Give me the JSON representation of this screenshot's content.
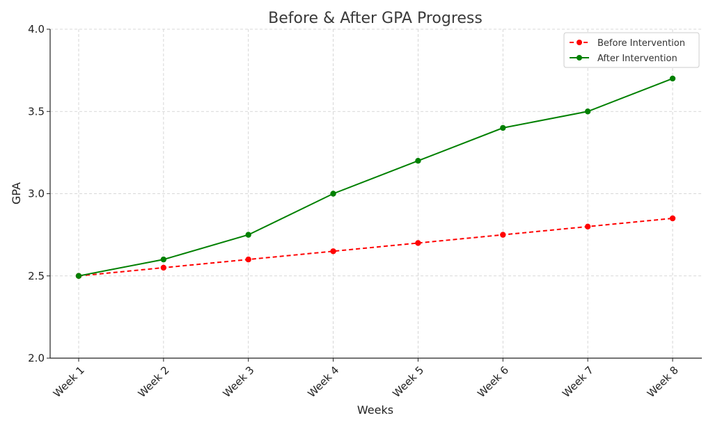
{
  "chart_data": {
    "type": "line",
    "title": "Before & After GPA Progress",
    "xlabel": "Weeks",
    "ylabel": "GPA",
    "categories": [
      "Week 1",
      "Week 2",
      "Week 3",
      "Week 4",
      "Week 5",
      "Week 6",
      "Week 7",
      "Week 8"
    ],
    "ylim": [
      2.0,
      4.0
    ],
    "yticks": [
      "2.0",
      "2.5",
      "3.0",
      "3.5",
      "4.0"
    ],
    "grid": true,
    "legend_position": "top-right",
    "series": [
      {
        "name": "Before Intervention",
        "color": "#ff0000",
        "line_style": "dashed",
        "marker": "circle",
        "values": [
          2.5,
          2.55,
          2.6,
          2.65,
          2.7,
          2.75,
          2.8,
          2.85
        ]
      },
      {
        "name": "After Intervention",
        "color": "#008000",
        "line_style": "solid",
        "marker": "circle",
        "values": [
          2.5,
          2.6,
          2.75,
          3.0,
          3.2,
          3.4,
          3.5,
          3.7
        ]
      }
    ]
  }
}
